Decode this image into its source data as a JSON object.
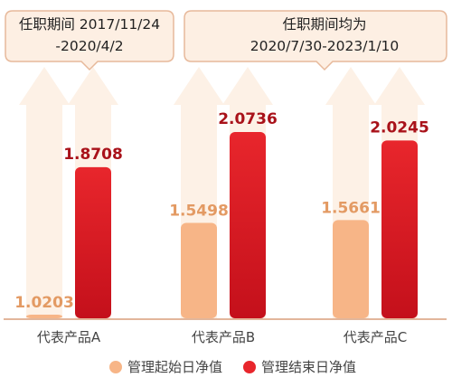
{
  "callouts": [
    {
      "lines": [
        "任职期间 2017/11/24",
        "-2020/4/2"
      ]
    },
    {
      "lines": [
        "任职期间均为",
        "2020/7/30-2023/1/10"
      ]
    }
  ],
  "colors": {
    "start": "#F7B587",
    "end_top": "#E8262C",
    "end_bottom": "#C4101B",
    "start_label": "#E39A63",
    "end_label": "#A9121A",
    "arrow": "#FDF1E6",
    "callout_fill": "#FDEFE3",
    "callout_stroke": "#E7B99B",
    "callout_text": "#222222",
    "axis": "#D99D7A",
    "tick_text": "#444444"
  },
  "chart_data": {
    "type": "bar",
    "categories": [
      "代表产品A",
      "代表产品B",
      "代表产品C"
    ],
    "series": [
      {
        "name": "管理起始日净值",
        "values": [
          1.0203,
          1.5498,
          1.5661
        ],
        "labels": [
          "1.0203",
          "1.5498",
          "1.5661"
        ]
      },
      {
        "name": "管理结束日净值",
        "values": [
          1.8708,
          2.0736,
          2.0245
        ],
        "labels": [
          "1.8708",
          "2.0736",
          "2.0245"
        ]
      }
    ],
    "legend_position": "bottom",
    "grid": false
  }
}
